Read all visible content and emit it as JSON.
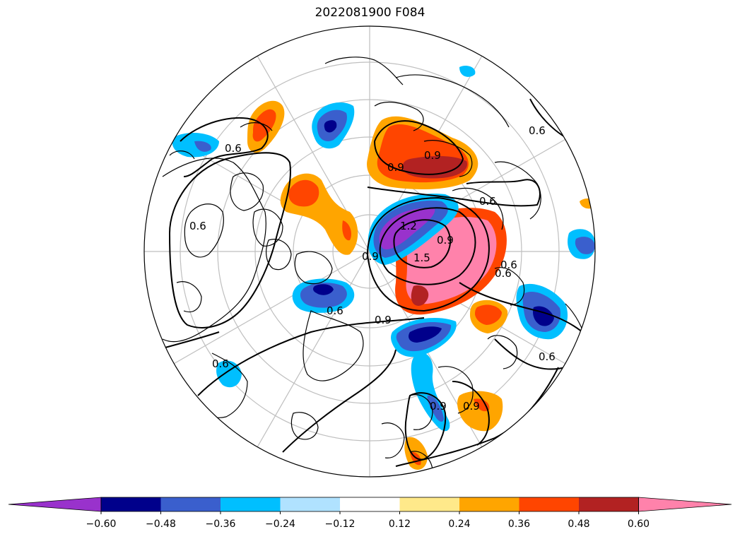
{
  "title": "2022081900 F084",
  "colorbar": {
    "colors": [
      "#9932cc",
      "#00008b",
      "#3a5fcd",
      "#00bfff",
      "#b0e2ff",
      "#ffffff",
      "#ffe98a",
      "#ffa500",
      "#ff4500",
      "#b22222",
      "#ff82ab"
    ],
    "tick_labels": [
      "−0.60",
      "−0.48",
      "−0.36",
      "−0.24",
      "−0.12",
      "0.12",
      "0.24",
      "0.36",
      "0.48",
      "0.60"
    ],
    "extend": "both"
  },
  "map": {
    "projection": "north-polar-stereographic",
    "graticule": "on",
    "coastline_color": "#000000",
    "contour_color": "#000000",
    "contour_labels": [
      "0.6",
      "0.9",
      "0.6",
      "0.9",
      "0.6",
      "1.2",
      "0.9",
      "1.5",
      "0.9",
      "0.6",
      "0.6",
      "0.6",
      "0.9",
      "0.9",
      "0.6",
      "0.9",
      "0.6",
      "0.6"
    ]
  }
}
